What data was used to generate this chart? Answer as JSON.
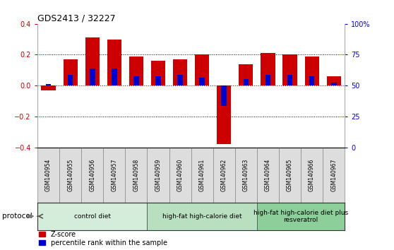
{
  "title": "GDS2413 / 32227",
  "samples": [
    "GSM140954",
    "GSM140955",
    "GSM140956",
    "GSM140957",
    "GSM140958",
    "GSM140959",
    "GSM140960",
    "GSM140961",
    "GSM140962",
    "GSM140963",
    "GSM140964",
    "GSM140965",
    "GSM140966",
    "GSM140967"
  ],
  "zscore": [
    -0.03,
    0.17,
    0.31,
    0.3,
    0.19,
    0.16,
    0.17,
    0.2,
    -0.38,
    0.14,
    0.21,
    0.2,
    0.19,
    0.06
  ],
  "percentile": [
    0.01,
    0.07,
    0.11,
    0.11,
    0.06,
    0.06,
    0.07,
    0.05,
    -0.13,
    0.04,
    0.07,
    0.07,
    0.06,
    0.02
  ],
  "groups": [
    {
      "label": "control diet",
      "start": 0,
      "end": 4,
      "color": "#d4edda"
    },
    {
      "label": "high-fat high-calorie diet",
      "start": 5,
      "end": 9,
      "color": "#b8dfc0"
    },
    {
      "label": "high-fat high-calorie diet plus\nresveratrol",
      "start": 10,
      "end": 13,
      "color": "#8dcf9a"
    }
  ],
  "protocol_label": "protocol",
  "ylim": [
    -0.4,
    0.4
  ],
  "yticks": [
    -0.4,
    -0.2,
    0.0,
    0.2,
    0.4
  ],
  "right_ytick_labels": [
    "100%",
    "75",
    "50",
    "25",
    "0"
  ],
  "right_ytick_positions": [
    0.4,
    0.2,
    0.0,
    -0.2,
    -0.4
  ],
  "bar_color": "#cc0000",
  "pct_color": "#0000cc",
  "bar_width": 0.65,
  "tick_label_color": "#cc0000",
  "right_tick_color": "#0000cc",
  "bg_color": "#ffffff",
  "sample_box_color": "#dddddd",
  "border_color": "#888888",
  "zero_line_color": "#cc0000",
  "legend_zscore": "Z-score",
  "legend_pct": "percentile rank within the sample"
}
